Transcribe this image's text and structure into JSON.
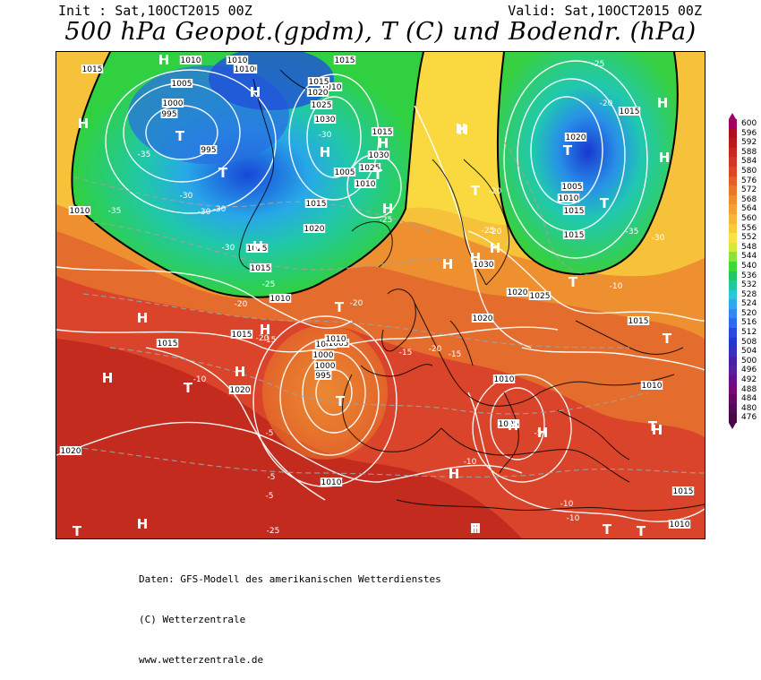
{
  "header": {
    "init": "Init : Sat,10OCT2015 00Z",
    "valid": "Valid: Sat,10OCT2015 00Z",
    "title": "500 hPa Geopot.(gpdm), T (C) und Bodendr. (hPa)"
  },
  "legend": {
    "labels": [
      "600",
      "596",
      "592",
      "588",
      "584",
      "580",
      "576",
      "572",
      "568",
      "564",
      "560",
      "556",
      "552",
      "548",
      "544",
      "540",
      "536",
      "532",
      "528",
      "524",
      "520",
      "516",
      "512",
      "508",
      "504",
      "500",
      "496",
      "492",
      "488",
      "484",
      "480",
      "476"
    ],
    "colors": [
      "#a00060",
      "#ad0f1d",
      "#ba1a1a",
      "#c9261f",
      "#d33624",
      "#dc4826",
      "#e2602a",
      "#e8762c",
      "#ee8c30",
      "#f2a134",
      "#f6b638",
      "#f9cb3c",
      "#fbe046",
      "#d6e83a",
      "#8ee03a",
      "#3ed838",
      "#20c860",
      "#20c8a0",
      "#28c8d8",
      "#30a8ec",
      "#3088f0",
      "#3068f0",
      "#2848e0",
      "#2038d0",
      "#3830b8",
      "#4820a8",
      "#582098",
      "#681088",
      "#780878",
      "#640868",
      "#560858",
      "#480848"
    ]
  },
  "map": {
    "isobars": [
      "1010",
      "1015",
      "1005",
      "1000",
      "995",
      "1020",
      "1010",
      "1010",
      "1015",
      "1010",
      "1015",
      "1020",
      "1025",
      "1030",
      "995",
      "1015",
      "1030",
      "1025",
      "1005",
      "1010",
      "1015",
      "1020",
      "1025",
      "1010",
      "1015",
      "1010",
      "1005",
      "1000",
      "1000",
      "995",
      "1005",
      "1010",
      "1020",
      "1015",
      "1015",
      "1010",
      "1005",
      "1020",
      "1030",
      "1025",
      "1020",
      "1020",
      "1015",
      "1010",
      "1005",
      "1015",
      "1015",
      "1010",
      "1015",
      "1015",
      "1010",
      "1020",
      "1010"
    ],
    "temps": [
      "-35",
      "-30",
      "-30",
      "-30",
      "-30",
      "-35",
      "-30",
      "-25",
      "-25",
      "-20",
      "-20",
      "-20",
      "-15",
      "-15",
      "-20",
      "-15",
      "-10",
      "-10",
      "-5",
      "-5",
      "-5",
      "-25",
      "-25",
      "-20",
      "-20",
      "-20",
      "-25",
      "-35",
      "-30",
      "-10",
      "-10",
      "-10",
      "-5"
    ],
    "symbols": [
      "H",
      "H",
      "H",
      "T",
      "T",
      "H",
      "H",
      "H",
      "T",
      "H",
      "H",
      "T",
      "H",
      "T",
      "T",
      "H",
      "T",
      "H",
      "H",
      "H",
      "T",
      "T",
      "H",
      "T",
      "H",
      "H",
      "H",
      "T",
      "H",
      "T",
      "H",
      "T",
      "H",
      "H",
      "T",
      "H",
      "H",
      "H",
      "T",
      "T"
    ]
  },
  "footer": {
    "line1": "Daten: GFS-Modell des amerikanischen Wetterdienstes",
    "line2": "(C) Wetterzentrale",
    "line3": "www.wetterzentrale.de"
  }
}
